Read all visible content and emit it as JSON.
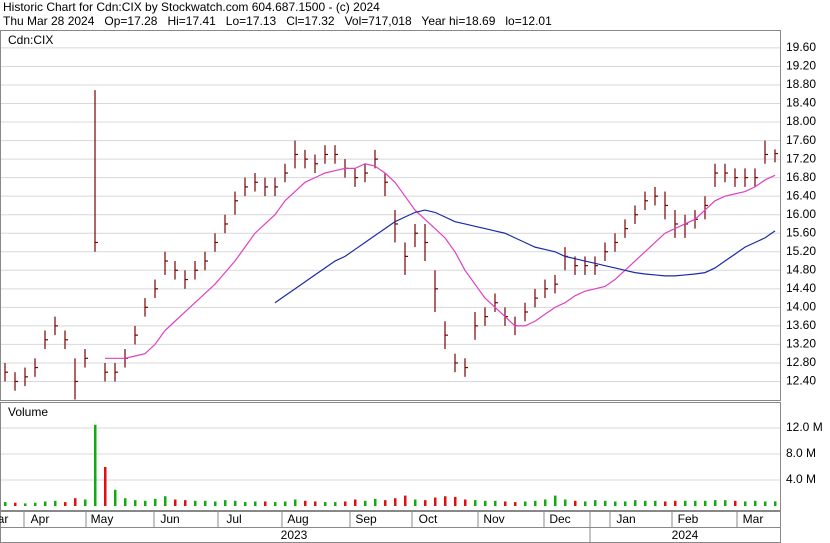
{
  "chart_data": {
    "type": "ohlc",
    "title": "Historic Chart for Cdn:CIX by Stockwatch.com 604.687.1500 - (c) 2024",
    "subtitle": "Thu Mar 28 2024   Op=17.28   Hi=17.41   Lo=17.13   Cl=17.32   Vol=717,018   Year hi=18.69   lo=12.01",
    "panel_label": "Cdn:CIX",
    "color": "#7a0000",
    "high": [
      12.8,
      12.6,
      12.7,
      12.9,
      13.5,
      13.8,
      13.5,
      12.9,
      13.1,
      18.69,
      12.8,
      12.8,
      13.1,
      13.6,
      14.2,
      14.6,
      15.2,
      15.0,
      14.8,
      15.0,
      15.2,
      15.6,
      16.0,
      16.5,
      16.8,
      16.9,
      16.8,
      16.8,
      17.1,
      17.6,
      17.4,
      17.3,
      17.5,
      17.5,
      17.2,
      17.0,
      17.1,
      17.4,
      16.9,
      16.1,
      15.4,
      15.8,
      15.8,
      14.8,
      13.7,
      13.0,
      12.9,
      13.9,
      14.0,
      14.3,
      14.0,
      13.8,
      14.1,
      14.4,
      14.6,
      14.7,
      15.3,
      15.1,
      15.1,
      15.1,
      15.4,
      15.6,
      15.9,
      16.2,
      16.5,
      16.6,
      16.5,
      16.1,
      16.0,
      16.1,
      16.4,
      17.1,
      17.1,
      17.0,
      17.0,
      17.0,
      17.6,
      17.41
    ],
    "low": [
      12.4,
      12.2,
      12.3,
      12.5,
      13.1,
      13.4,
      13.1,
      12.01,
      12.7,
      15.2,
      12.4,
      12.4,
      12.7,
      13.2,
      13.8,
      14.2,
      14.7,
      14.6,
      14.4,
      14.6,
      14.8,
      15.2,
      15.6,
      16.0,
      16.4,
      16.5,
      16.4,
      16.4,
      16.7,
      17.0,
      17.0,
      16.9,
      17.1,
      17.1,
      16.8,
      16.6,
      16.7,
      17.0,
      16.4,
      15.4,
      14.7,
      15.3,
      15.0,
      13.9,
      13.1,
      12.6,
      12.5,
      13.3,
      13.6,
      13.9,
      13.6,
      13.4,
      13.7,
      14.0,
      14.2,
      14.3,
      14.8,
      14.7,
      14.7,
      14.7,
      15.0,
      15.2,
      15.5,
      15.8,
      16.1,
      16.2,
      15.9,
      15.5,
      15.5,
      15.7,
      15.9,
      16.6,
      16.7,
      16.6,
      16.6,
      16.6,
      17.1,
      17.13
    ],
    "close": [
      12.6,
      12.4,
      12.5,
      12.7,
      13.3,
      13.6,
      13.3,
      12.4,
      12.9,
      15.4,
      12.6,
      12.6,
      12.9,
      13.4,
      14.0,
      14.4,
      15.0,
      14.8,
      14.6,
      14.8,
      15.0,
      15.4,
      15.8,
      16.3,
      16.6,
      16.7,
      16.6,
      16.6,
      16.9,
      17.3,
      17.2,
      17.1,
      17.3,
      17.3,
      17.0,
      16.8,
      16.9,
      17.2,
      16.7,
      15.8,
      15.1,
      15.6,
      15.4,
      14.4,
      13.4,
      12.8,
      12.7,
      13.6,
      13.8,
      14.1,
      13.8,
      13.6,
      13.9,
      14.2,
      14.4,
      14.5,
      15.1,
      14.9,
      14.9,
      14.9,
      15.2,
      15.4,
      15.7,
      16.0,
      16.3,
      16.4,
      16.2,
      15.8,
      15.8,
      15.9,
      16.2,
      16.9,
      16.9,
      16.8,
      16.8,
      16.8,
      17.3,
      17.32
    ],
    "series": [
      {
        "color": "#e040c0",
        "values": [
          null,
          null,
          null,
          null,
          null,
          null,
          null,
          null,
          null,
          null,
          12.9,
          12.9,
          12.9,
          12.95,
          13.0,
          13.2,
          13.5,
          13.7,
          13.9,
          14.1,
          14.3,
          14.5,
          14.75,
          15.0,
          15.3,
          15.6,
          15.8,
          16.0,
          16.3,
          16.5,
          16.7,
          16.8,
          16.9,
          16.95,
          17.0,
          17.0,
          17.1,
          17.05,
          16.9,
          16.7,
          16.4,
          16.1,
          15.9,
          15.7,
          15.5,
          15.2,
          14.8,
          14.5,
          14.2,
          14.0,
          13.8,
          13.6,
          13.6,
          13.7,
          13.85,
          14.0,
          14.1,
          14.25,
          14.35,
          14.4,
          14.45,
          14.6,
          14.8,
          15.0,
          15.2,
          15.4,
          15.6,
          15.7,
          15.8,
          15.9,
          16.1,
          16.3,
          16.4,
          16.45,
          16.5,
          16.6,
          16.75,
          16.85
        ]
      },
      {
        "color": "#1a2aa8",
        "values": [
          null,
          null,
          null,
          null,
          null,
          null,
          null,
          null,
          null,
          null,
          null,
          null,
          null,
          null,
          null,
          null,
          null,
          null,
          null,
          null,
          null,
          null,
          null,
          null,
          null,
          null,
          null,
          14.1,
          14.25,
          14.4,
          14.55,
          14.7,
          14.85,
          15.0,
          15.1,
          15.25,
          15.4,
          15.55,
          15.7,
          15.85,
          15.95,
          16.05,
          16.1,
          16.05,
          15.95,
          15.85,
          15.8,
          15.75,
          15.7,
          15.65,
          15.6,
          15.5,
          15.4,
          15.3,
          15.25,
          15.2,
          15.1,
          15.05,
          15.0,
          14.95,
          14.9,
          14.85,
          14.8,
          14.75,
          14.72,
          14.7,
          14.68,
          14.68,
          14.7,
          14.72,
          14.75,
          14.85,
          15.0,
          15.15,
          15.3,
          15.4,
          15.5,
          15.65
        ]
      }
    ],
    "ylim": [
      12.0,
      20.0
    ],
    "yticks": [
      {
        "value": 12.4,
        "label": "12.40"
      },
      {
        "value": 12.8,
        "label": "12.80"
      },
      {
        "value": 13.2,
        "label": "13.20"
      },
      {
        "value": 13.6,
        "label": "13.60"
      },
      {
        "value": 14.0,
        "label": "14.00"
      },
      {
        "value": 14.4,
        "label": "14.40"
      },
      {
        "value": 14.8,
        "label": "14.80"
      },
      {
        "value": 15.2,
        "label": "15.20"
      },
      {
        "value": 15.6,
        "label": "15.60"
      },
      {
        "value": 16.0,
        "label": "16.00"
      },
      {
        "value": 16.4,
        "label": "16.40"
      },
      {
        "value": 16.8,
        "label": "16.80"
      },
      {
        "value": 17.2,
        "label": "17.20"
      },
      {
        "value": 17.6,
        "label": "17.60"
      },
      {
        "value": 18.0,
        "label": "18.00"
      },
      {
        "value": 18.4,
        "label": "18.40"
      },
      {
        "value": 18.8,
        "label": "18.80"
      },
      {
        "value": 19.2,
        "label": "19.20"
      },
      {
        "value": 19.6,
        "label": "19.60"
      }
    ],
    "grid": true,
    "volume": {
      "label": "Volume",
      "up_color": "#11aa11",
      "down_color": "#dd1111",
      "values": [
        0.6,
        0.5,
        0.4,
        0.5,
        0.7,
        0.8,
        0.6,
        1.2,
        1.0,
        12.5,
        6.0,
        2.5,
        1.2,
        0.9,
        0.8,
        1.1,
        1.5,
        1.0,
        0.9,
        0.8,
        0.8,
        0.7,
        0.9,
        0.8,
        0.6,
        0.7,
        0.7,
        0.6,
        0.7,
        1.0,
        0.8,
        0.7,
        0.6,
        0.6,
        0.7,
        1.0,
        0.8,
        1.1,
        0.9,
        1.2,
        1.6,
        1.0,
        0.9,
        1.3,
        1.5,
        1.4,
        1.0,
        0.9,
        0.8,
        0.8,
        0.7,
        0.6,
        0.7,
        0.8,
        1.0,
        1.6,
        1.0,
        0.8,
        0.7,
        0.9,
        0.8,
        0.7,
        0.7,
        0.9,
        0.8,
        0.8,
        0.7,
        0.8,
        0.8,
        0.8,
        0.8,
        0.9,
        0.9,
        0.8,
        0.7,
        0.8,
        0.7,
        0.717018
      ],
      "ylim": [
        0,
        16
      ],
      "yticks": [
        {
          "value": 4,
          "label": "4.0 M"
        },
        {
          "value": 8,
          "label": "8.0 M"
        },
        {
          "value": 12,
          "label": "12.0 M"
        }
      ]
    },
    "xticks": [
      {
        "value": -0.7,
        "label": "Mar"
      },
      {
        "value": 3.5,
        "label": "Apr"
      },
      {
        "value": 9.7,
        "label": "May"
      },
      {
        "value": 16.5,
        "label": "Jun"
      },
      {
        "value": 22.9,
        "label": "Jul"
      },
      {
        "value": 29.3,
        "label": "Aug"
      },
      {
        "value": 36.1,
        "label": "Sep"
      },
      {
        "value": 42.3,
        "label": "Oct"
      },
      {
        "value": 48.9,
        "label": "Nov"
      },
      {
        "value": 55.5,
        "label": "Dec"
      },
      {
        "value": 62.1,
        "label": "Jan"
      },
      {
        "value": 68.3,
        "label": "Feb"
      },
      {
        "value": 74.8,
        "label": "Mar"
      }
    ],
    "year_ticks": [
      {
        "value": 28.9,
        "label": "2023"
      },
      {
        "value": 68.0,
        "label": "2024"
      }
    ]
  }
}
